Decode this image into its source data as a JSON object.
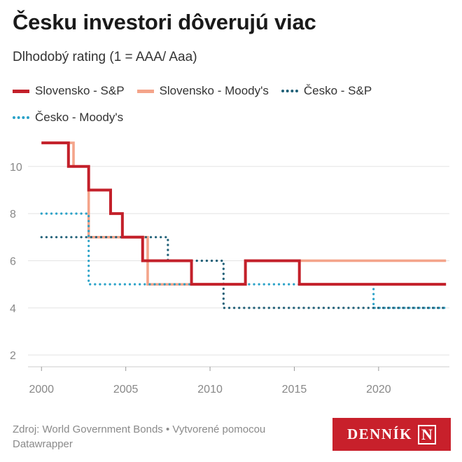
{
  "title": "Česku investori dôverujú viac",
  "subtitle": "Dlhodobý rating (1 = AAA/ Aaa)",
  "footer": {
    "source": "Zdroj: World Government Bonds • Vytvorené pomocou Datawrapper"
  },
  "logo": {
    "text": "DENNÍK",
    "mark": "N"
  },
  "chart_data": {
    "type": "line",
    "step": true,
    "xlim": [
      1999.2,
      2024.2
    ],
    "ylim": [
      1.5,
      11.3
    ],
    "x_ticks": [
      2000,
      2005,
      2010,
      2015,
      2020
    ],
    "y_ticks": [
      2,
      4,
      6,
      8,
      10
    ],
    "grid": true,
    "legend_position": "top",
    "series": [
      {
        "name": "Slovensko - S&P",
        "color": "#c3202a",
        "dash": "solid",
        "points": [
          [
            2000,
            11
          ],
          [
            2001.6,
            10
          ],
          [
            2002.8,
            9
          ],
          [
            2004.1,
            8
          ],
          [
            2004.8,
            7
          ],
          [
            2006,
            6
          ],
          [
            2008.9,
            5
          ],
          [
            2012.1,
            6
          ],
          [
            2015.3,
            5
          ],
          [
            2024,
            5
          ]
        ]
      },
      {
        "name": "Slovensko - Moody's",
        "color": "#f4a48a",
        "dash": "solid",
        "points": [
          [
            2000,
            11
          ],
          [
            2001.9,
            10
          ],
          [
            2002.8,
            7
          ],
          [
            2006.3,
            5
          ],
          [
            2008.9,
            5
          ],
          [
            2012.1,
            6
          ],
          [
            2024,
            6
          ]
        ]
      },
      {
        "name": "Česko - S&P",
        "color": "#1f5f77",
        "dash": "dotted",
        "points": [
          [
            2000,
            7
          ],
          [
            2007.5,
            6
          ],
          [
            2010.8,
            4
          ],
          [
            2024,
            4
          ]
        ]
      },
      {
        "name": "Česko - Moody's",
        "color": "#2aa2c8",
        "dash": "dotted",
        "points": [
          [
            2000,
            8
          ],
          [
            2002.8,
            5
          ],
          [
            2019.7,
            4
          ],
          [
            2024,
            4
          ]
        ]
      }
    ]
  }
}
